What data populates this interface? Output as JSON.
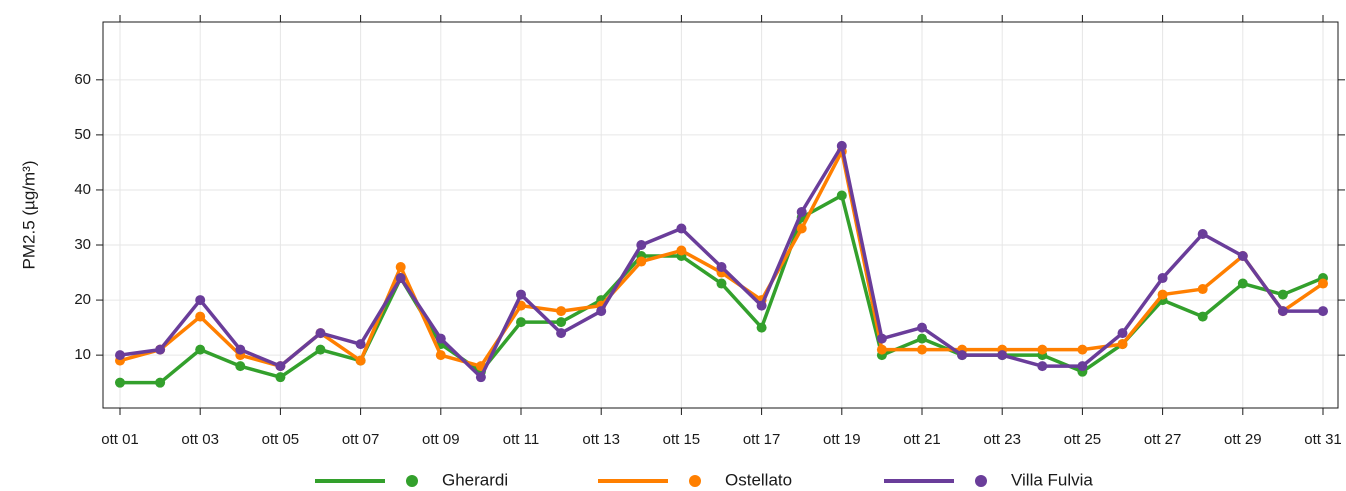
{
  "chart_data": {
    "type": "line",
    "y_label": "PM2.5 (µg/m³)",
    "categories": [
      "ott 01",
      null,
      "ott 03",
      null,
      "ott 05",
      null,
      "ott 07",
      null,
      "ott 09",
      null,
      "ott 11",
      null,
      "ott 13",
      null,
      "ott 15",
      null,
      "ott 17",
      null,
      "ott 19",
      null,
      "ott 21",
      null,
      "ott 23",
      null,
      "ott 25",
      null,
      "ott 27",
      null,
      "ott 29",
      null,
      "ott 31"
    ],
    "series": [
      {
        "name": "Gherardi",
        "color": "#33a02c",
        "values": [
          5,
          5,
          11,
          8,
          6,
          11,
          9,
          24,
          12,
          7,
          16,
          16,
          20,
          28,
          28,
          23,
          15,
          35,
          39,
          10,
          13,
          10,
          10,
          10,
          7,
          12,
          20,
          17,
          23,
          21,
          24
        ]
      },
      {
        "name": "Ostellato",
        "color": "#ff7f00",
        "values": [
          9,
          11,
          17,
          10,
          8,
          14,
          9,
          26,
          10,
          8,
          19,
          18,
          19,
          27,
          29,
          25,
          20,
          33,
          47,
          11,
          11,
          11,
          11,
          11,
          11,
          12,
          21,
          22,
          28,
          18,
          23
        ]
      },
      {
        "name": "Villa Fulvia",
        "color": "#6a3d9a",
        "values": [
          10,
          11,
          20,
          11,
          8,
          14,
          12,
          24,
          13,
          6,
          21,
          14,
          18,
          30,
          33,
          26,
          19,
          36,
          48,
          13,
          15,
          10,
          10,
          8,
          8,
          14,
          24,
          32,
          28,
          18,
          18
        ]
      }
    ],
    "ylim": [
      0.4,
      70.5
    ],
    "yticks": [
      10,
      20,
      30,
      40,
      50,
      60
    ],
    "grid": true,
    "legend": "bottom"
  }
}
